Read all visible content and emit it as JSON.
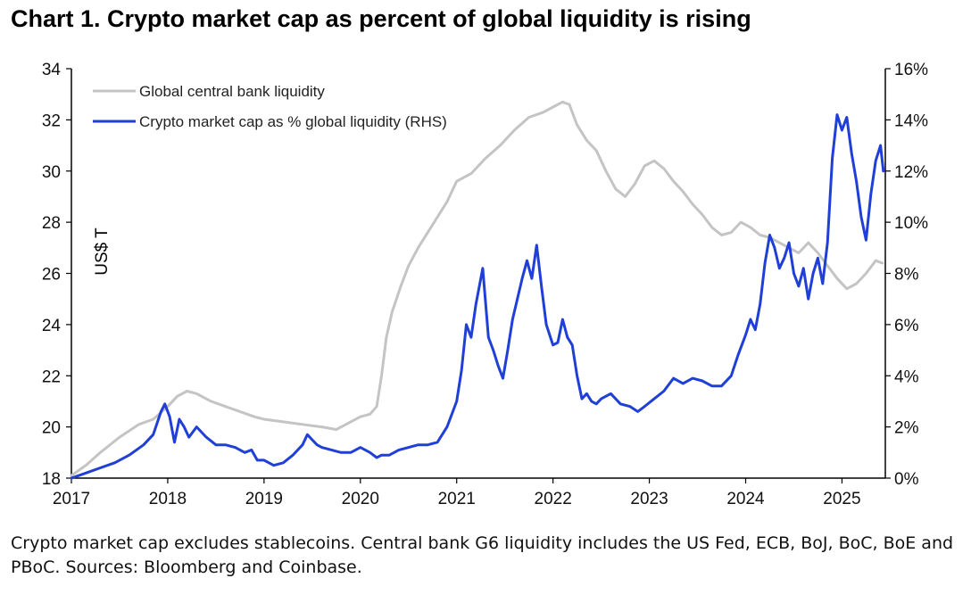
{
  "title": "Chart 1. Crypto market cap as percent of global liquidity is rising",
  "note": "Crypto market cap excludes stablecoins. Central bank G6 liquidity includes the US Fed, ECB, BoJ, BoC, BoE and PBoC. Sources: Bloomberg and Coinbase.",
  "colors": {
    "liquidity": "#c4c4c4",
    "crypto": "#1f3fd6",
    "axis": "#000000"
  },
  "chart_data": {
    "type": "line",
    "title": "Chart 1. Crypto market cap as percent of global liquidity is rising",
    "ylabel": "US$ T",
    "xlim": [
      2017.0,
      2025.45
    ],
    "ylim": [
      18,
      34
    ],
    "y2lim": [
      0,
      16
    ],
    "x_ticks": [
      "2017",
      "2018",
      "2019",
      "2020",
      "2021",
      "2022",
      "2023",
      "2024",
      "2025"
    ],
    "y_ticks": [
      "18",
      "20",
      "22",
      "24",
      "26",
      "28",
      "30",
      "32",
      "34"
    ],
    "y2_ticks": [
      "0%",
      "2%",
      "4%",
      "6%",
      "8%",
      "10%",
      "12%",
      "14%",
      "16%"
    ],
    "legend_position": "top-left",
    "grid": false,
    "series": [
      {
        "name": "Global central bank liquidity",
        "axis": "left",
        "x": [
          2017.0,
          2017.15,
          2017.3,
          2017.5,
          2017.7,
          2017.85,
          2018.0,
          2018.1,
          2018.2,
          2018.3,
          2018.45,
          2018.6,
          2018.75,
          2018.9,
          2019.0,
          2019.2,
          2019.4,
          2019.6,
          2019.75,
          2019.9,
          2020.0,
          2020.1,
          2020.17,
          2020.22,
          2020.27,
          2020.33,
          2020.42,
          2020.5,
          2020.6,
          2020.7,
          2020.8,
          2020.9,
          2021.0,
          2021.15,
          2021.3,
          2021.45,
          2021.6,
          2021.75,
          2021.9,
          2022.0,
          2022.1,
          2022.17,
          2022.25,
          2022.35,
          2022.45,
          2022.55,
          2022.65,
          2022.75,
          2022.85,
          2022.95,
          2023.05,
          2023.15,
          2023.25,
          2023.35,
          2023.45,
          2023.55,
          2023.65,
          2023.75,
          2023.85,
          2023.95,
          2024.05,
          2024.15,
          2024.25,
          2024.35,
          2024.45,
          2024.55,
          2024.65,
          2024.75,
          2024.85,
          2024.95,
          2025.05,
          2025.15,
          2025.25,
          2025.35,
          2025.42
        ],
        "values": [
          18.1,
          18.5,
          19.0,
          19.6,
          20.1,
          20.3,
          20.8,
          21.2,
          21.4,
          21.3,
          21.0,
          20.8,
          20.6,
          20.4,
          20.3,
          20.2,
          20.1,
          20.0,
          19.9,
          20.2,
          20.4,
          20.5,
          20.8,
          22.0,
          23.5,
          24.5,
          25.5,
          26.3,
          27.0,
          27.6,
          28.2,
          28.8,
          29.6,
          29.9,
          30.5,
          31.0,
          31.6,
          32.1,
          32.3,
          32.5,
          32.7,
          32.6,
          31.8,
          31.2,
          30.8,
          30.0,
          29.3,
          29.0,
          29.5,
          30.2,
          30.4,
          30.1,
          29.6,
          29.2,
          28.7,
          28.3,
          27.8,
          27.5,
          27.6,
          28.0,
          27.8,
          27.5,
          27.4,
          27.2,
          27.0,
          26.8,
          27.2,
          26.8,
          26.3,
          25.8,
          25.4,
          25.6,
          26.0,
          26.5,
          26.4
        ]
      },
      {
        "name": "Crypto market cap as % global liquidity (RHS)",
        "axis": "right",
        "x": [
          2017.0,
          2017.15,
          2017.3,
          2017.45,
          2017.6,
          2017.75,
          2017.85,
          2017.93,
          2017.97,
          2018.02,
          2018.07,
          2018.12,
          2018.17,
          2018.22,
          2018.3,
          2018.4,
          2018.5,
          2018.6,
          2018.7,
          2018.8,
          2018.87,
          2018.93,
          2019.0,
          2019.1,
          2019.2,
          2019.3,
          2019.4,
          2019.45,
          2019.5,
          2019.55,
          2019.6,
          2019.7,
          2019.8,
          2019.9,
          2020.0,
          2020.1,
          2020.17,
          2020.22,
          2020.3,
          2020.4,
          2020.5,
          2020.6,
          2020.7,
          2020.8,
          2020.9,
          2021.0,
          2021.05,
          2021.1,
          2021.15,
          2021.2,
          2021.27,
          2021.33,
          2021.38,
          2021.43,
          2021.48,
          2021.53,
          2021.58,
          2021.63,
          2021.68,
          2021.73,
          2021.78,
          2021.83,
          2021.88,
          2021.93,
          2022.0,
          2022.05,
          2022.1,
          2022.15,
          2022.2,
          2022.25,
          2022.3,
          2022.35,
          2022.4,
          2022.45,
          2022.5,
          2022.6,
          2022.7,
          2022.8,
          2022.88,
          2022.95,
          2023.05,
          2023.15,
          2023.25,
          2023.35,
          2023.45,
          2023.55,
          2023.65,
          2023.75,
          2023.85,
          2023.92,
          2024.0,
          2024.05,
          2024.1,
          2024.15,
          2024.2,
          2024.25,
          2024.3,
          2024.35,
          2024.4,
          2024.45,
          2024.5,
          2024.55,
          2024.6,
          2024.65,
          2024.7,
          2024.75,
          2024.8,
          2024.85,
          2024.9,
          2024.95,
          2025.0,
          2025.05,
          2025.1,
          2025.15,
          2025.2,
          2025.25,
          2025.3,
          2025.35,
          2025.4,
          2025.43
        ],
        "values": [
          0.0,
          0.2,
          0.4,
          0.6,
          0.9,
          1.3,
          1.7,
          2.6,
          2.9,
          2.4,
          1.4,
          2.3,
          2.0,
          1.6,
          2.0,
          1.6,
          1.3,
          1.3,
          1.2,
          1.0,
          1.1,
          0.7,
          0.7,
          0.5,
          0.6,
          0.9,
          1.3,
          1.7,
          1.5,
          1.3,
          1.2,
          1.1,
          1.0,
          1.0,
          1.2,
          1.0,
          0.8,
          0.9,
          0.9,
          1.1,
          1.2,
          1.3,
          1.3,
          1.4,
          2.0,
          3.0,
          4.2,
          6.0,
          5.5,
          6.8,
          8.2,
          5.5,
          5.0,
          4.4,
          3.9,
          5.0,
          6.2,
          7.0,
          7.8,
          8.5,
          7.8,
          9.1,
          7.5,
          6.0,
          5.2,
          5.3,
          6.2,
          5.5,
          5.2,
          4.0,
          3.1,
          3.3,
          3.0,
          2.9,
          3.1,
          3.3,
          2.9,
          2.8,
          2.6,
          2.8,
          3.1,
          3.4,
          3.9,
          3.7,
          3.9,
          3.8,
          3.6,
          3.6,
          4.0,
          4.8,
          5.6,
          6.2,
          5.8,
          6.8,
          8.4,
          9.5,
          9.0,
          8.2,
          8.6,
          9.2,
          8.0,
          7.5,
          8.2,
          7.0,
          8.0,
          8.6,
          7.6,
          9.2,
          12.5,
          14.2,
          13.6,
          14.1,
          12.7,
          11.6,
          10.2,
          9.3,
          11.1,
          12.4,
          13.0,
          12.0
        ]
      }
    ]
  }
}
